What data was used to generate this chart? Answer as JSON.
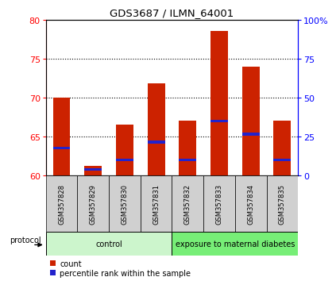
{
  "title": "GDS3687 / ILMN_64001",
  "samples": [
    "GSM357828",
    "GSM357829",
    "GSM357830",
    "GSM357831",
    "GSM357832",
    "GSM357833",
    "GSM357834",
    "GSM357835"
  ],
  "count_values": [
    70.0,
    61.2,
    66.5,
    71.8,
    67.0,
    78.5,
    74.0,
    67.0
  ],
  "percentile_values": [
    63.5,
    60.8,
    62.0,
    64.3,
    62.0,
    67.0,
    65.3,
    62.0
  ],
  "ymin": 60,
  "ymax": 80,
  "yticks_left": [
    60,
    65,
    70,
    75,
    80
  ],
  "ytick_labels_right": [
    "0",
    "25",
    "50",
    "75",
    "100%"
  ],
  "yticks_right_pos": [
    60,
    65,
    70,
    75,
    80
  ],
  "groups": [
    {
      "label": "control",
      "n_samples": 4,
      "color": "#ccf5cc"
    },
    {
      "label": "exposure to maternal diabetes",
      "n_samples": 4,
      "color": "#77ee77"
    }
  ],
  "bar_color": "#cc2200",
  "percentile_color": "#2222cc",
  "bar_bottom": 60,
  "protocol_label": "protocol"
}
